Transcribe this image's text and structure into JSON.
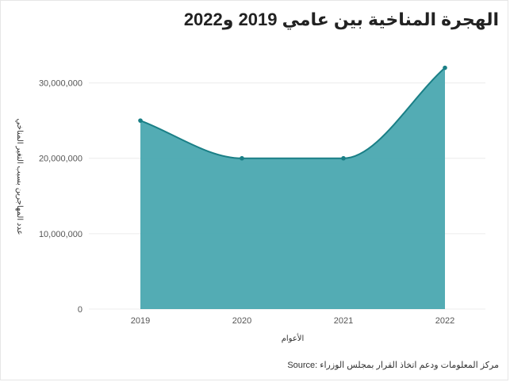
{
  "title": "الهجرة المناخية بين عامي 2019 و2022",
  "source": "مركز المعلومات ودعم اتخاذ القرار بمجلس الوزراء :Source",
  "colors": {
    "area": "#4aa8b0",
    "line": "#1a7f86",
    "grid": "#ececec",
    "text": "#555555"
  },
  "chart_data": {
    "type": "area",
    "x": [
      "2019",
      "2020",
      "2021",
      "2022"
    ],
    "values": [
      25000000,
      20000000,
      20000000,
      32000000
    ],
    "xlabel": "الأعوام",
    "ylabel": "عدد المهاجرين بسبب التغير المناخي",
    "ylim": [
      0,
      35000000
    ],
    "yticks": [
      0,
      10000000,
      20000000,
      30000000
    ],
    "ytick_labels": [
      "0",
      "10,000,000",
      "20,000,000",
      "30,000,000"
    ],
    "grid": true,
    "legend": "none"
  }
}
